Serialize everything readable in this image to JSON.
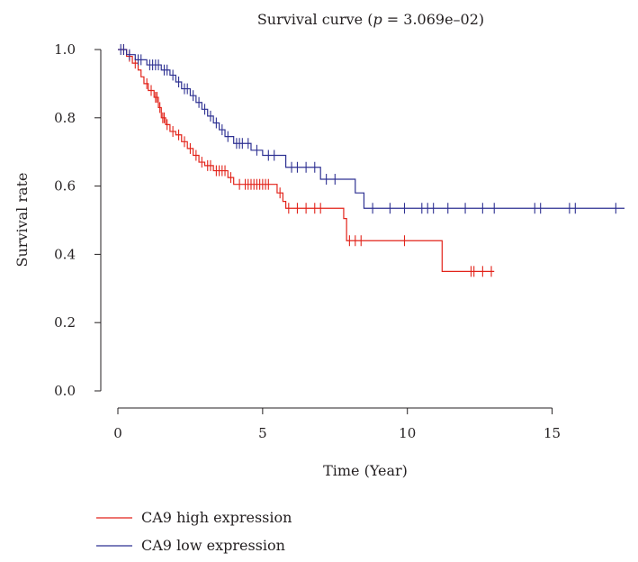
{
  "chart_data": {
    "type": "line",
    "subtype": "kaplan-meier",
    "title_prefix": "Survival curve (",
    "title_p": "p",
    "title_suffix": " = 3.069e–02)",
    "xlabel": "Time (Year)",
    "ylabel": "Survival rate",
    "xlim": [
      0,
      17.5
    ],
    "ylim": [
      0,
      1.0
    ],
    "xticks": [
      0,
      5,
      10,
      15
    ],
    "yticks": [
      0.0,
      0.2,
      0.4,
      0.6,
      0.8,
      1.0
    ],
    "ytick_labels": [
      "0.0",
      "0.2",
      "0.4",
      "0.6",
      "0.8",
      "1.0"
    ],
    "xtick_labels": [
      "0",
      "5",
      "10",
      "15"
    ],
    "grid": false,
    "legend_position": "bottom-left",
    "series": [
      {
        "name": "CA9 high expression",
        "color": "#e2231a",
        "steps": [
          [
            0,
            1.0
          ],
          [
            0.3,
            0.98
          ],
          [
            0.5,
            0.96
          ],
          [
            0.7,
            0.94
          ],
          [
            0.8,
            0.92
          ],
          [
            0.9,
            0.9
          ],
          [
            1.05,
            0.88
          ],
          [
            1.25,
            0.86
          ],
          [
            1.4,
            0.83
          ],
          [
            1.5,
            0.8
          ],
          [
            1.65,
            0.78
          ],
          [
            1.8,
            0.76
          ],
          [
            2.0,
            0.75
          ],
          [
            2.2,
            0.73
          ],
          [
            2.4,
            0.71
          ],
          [
            2.6,
            0.69
          ],
          [
            2.8,
            0.67
          ],
          [
            3.0,
            0.66
          ],
          [
            3.3,
            0.645
          ],
          [
            3.8,
            0.625
          ],
          [
            4.0,
            0.605
          ],
          [
            5.5,
            0.58
          ],
          [
            5.7,
            0.555
          ],
          [
            5.8,
            0.535
          ],
          [
            7.8,
            0.505
          ],
          [
            7.9,
            0.44
          ],
          [
            11.2,
            0.35
          ],
          [
            13.0,
            0.35
          ]
        ],
        "censor_times": [
          0.2,
          0.4,
          0.6,
          1.0,
          1.15,
          1.3,
          1.35,
          1.45,
          1.55,
          1.6,
          1.7,
          1.9,
          2.1,
          2.3,
          2.5,
          2.7,
          2.9,
          3.1,
          3.2,
          3.4,
          3.5,
          3.6,
          3.7,
          3.9,
          4.2,
          4.4,
          4.5,
          4.6,
          4.7,
          4.8,
          4.9,
          5.0,
          5.1,
          5.2,
          5.6,
          5.9,
          6.2,
          6.5,
          6.8,
          7.0,
          8.0,
          8.2,
          8.4,
          9.9,
          12.2,
          12.3,
          12.6,
          12.9
        ]
      },
      {
        "name": "CA9 low expression",
        "color": "#2e3192",
        "steps": [
          [
            0,
            1.0
          ],
          [
            0.3,
            0.985
          ],
          [
            0.6,
            0.97
          ],
          [
            1.0,
            0.955
          ],
          [
            1.5,
            0.94
          ],
          [
            1.8,
            0.925
          ],
          [
            2.0,
            0.905
          ],
          [
            2.2,
            0.885
          ],
          [
            2.5,
            0.865
          ],
          [
            2.7,
            0.845
          ],
          [
            2.9,
            0.825
          ],
          [
            3.1,
            0.805
          ],
          [
            3.3,
            0.785
          ],
          [
            3.5,
            0.765
          ],
          [
            3.7,
            0.745
          ],
          [
            4.0,
            0.725
          ],
          [
            4.6,
            0.705
          ],
          [
            5.0,
            0.69
          ],
          [
            5.8,
            0.655
          ],
          [
            7.0,
            0.62
          ],
          [
            8.2,
            0.58
          ],
          [
            8.5,
            0.535
          ],
          [
            17.5,
            0.535
          ]
        ],
        "censor_times": [
          0.1,
          0.2,
          0.4,
          0.7,
          0.8,
          1.1,
          1.2,
          1.3,
          1.4,
          1.6,
          1.7,
          1.9,
          2.1,
          2.3,
          2.4,
          2.6,
          2.8,
          3.0,
          3.2,
          3.4,
          3.6,
          3.8,
          4.1,
          4.2,
          4.3,
          4.5,
          4.8,
          5.2,
          5.4,
          6.0,
          6.2,
          6.5,
          6.8,
          7.2,
          7.5,
          8.8,
          9.4,
          9.9,
          10.5,
          10.7,
          10.9,
          11.4,
          12.0,
          12.6,
          13.0,
          14.4,
          14.6,
          15.6,
          15.8,
          17.2
        ]
      }
    ]
  }
}
